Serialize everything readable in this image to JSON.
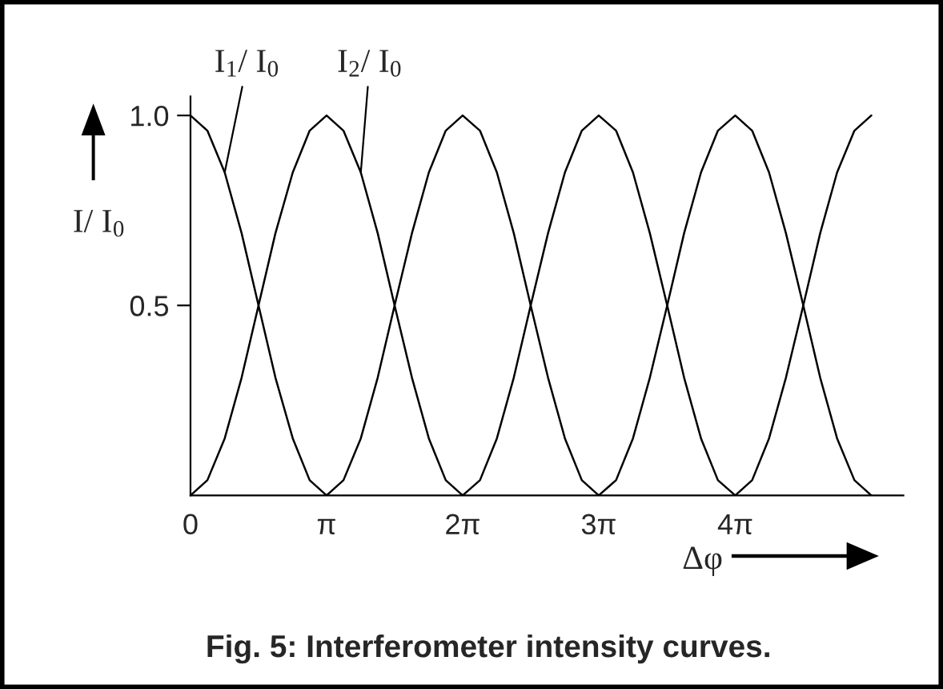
{
  "chart_data": {
    "type": "line",
    "title": "Fig. 5: Interferometer intensity curves.",
    "xlabel": "Δφ",
    "ylabel": "I/ I$_{0}$",
    "x": [
      0,
      0.39,
      0.79,
      1.18,
      1.57,
      1.96,
      2.36,
      2.75,
      3.14,
      3.53,
      3.93,
      4.32,
      4.71,
      5.11,
      5.5,
      5.89,
      6.28,
      6.68,
      7.07,
      7.46,
      7.85,
      8.25,
      8.64,
      9.03,
      9.42,
      9.82,
      10.21,
      10.6,
      11.0,
      11.39,
      11.78,
      12.17,
      12.57,
      12.96,
      13.35,
      13.74,
      14.14,
      14.53,
      14.92,
      15.32,
      15.71
    ],
    "series": [
      {
        "color": "#000000",
        "values": [
          1,
          0.96,
          0.85,
          0.69,
          0.5,
          0.31,
          0.15,
          0.04,
          0,
          0.04,
          0.15,
          0.31,
          0.5,
          0.69,
          0.85,
          0.96,
          1,
          0.96,
          0.85,
          0.69,
          0.5,
          0.31,
          0.15,
          0.04,
          0,
          0.04,
          0.15,
          0.31,
          0.5,
          0.69,
          0.85,
          0.96,
          1,
          0.96,
          0.85,
          0.69,
          0.5,
          0.31,
          0.15,
          0.04,
          0
        ]
      },
      {
        "color": "#000000",
        "values": [
          0,
          0.04,
          0.15,
          0.31,
          0.5,
          0.69,
          0.85,
          0.96,
          1,
          0.96,
          0.85,
          0.69,
          0.5,
          0.31,
          0.15,
          0.04,
          0,
          0.04,
          0.15,
          0.31,
          0.5,
          0.69,
          0.85,
          0.96,
          1,
          0.96,
          0.85,
          0.69,
          0.5,
          0.31,
          0.15,
          0.04,
          0,
          0.04,
          0.15,
          0.31,
          0.5,
          0.69,
          0.85,
          0.96,
          1
        ]
      }
    ],
    "annotations": [
      {
        "text": "I$_{1}$/ I$_{0}$",
        "x": 0.79,
        "y": 0.85
      },
      {
        "text": "I$_{2}$/ I$_{0}$",
        "x": 3.93,
        "y": 0.85
      }
    ],
    "xlim": [
      0,
      16.45
    ],
    "ylim": [
      0,
      1.05
    ],
    "xticks": [
      {
        "value": 0,
        "label": "0"
      },
      {
        "value": 3.14,
        "label": "π"
      },
      {
        "value": 6.28,
        "label": "2π"
      },
      {
        "value": 9.42,
        "label": "3π"
      },
      {
        "value": 12.57,
        "label": "4π"
      }
    ],
    "yticks": [
      0.5,
      {
        "value": 1.0,
        "label": "1.0"
      }
    ],
    "grid": false,
    "marker": "none",
    "line_style": "solid"
  }
}
